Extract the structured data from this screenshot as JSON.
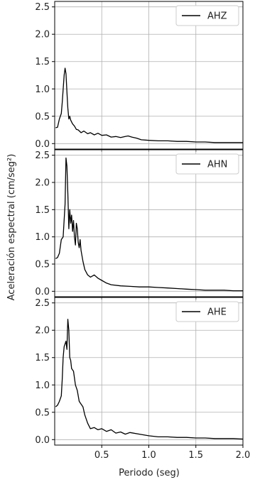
{
  "figure": {
    "ylabel": "Aceleración espectral (cm/seg²)",
    "xlabel": "Periodo (seg)"
  },
  "colors": {
    "line": "#000000",
    "grid": "#b0b0b0",
    "frame": "#000000"
  },
  "chart_data": [
    {
      "type": "line",
      "legend_position": "top-right",
      "grid": true,
      "xlim": [
        0.0,
        2.0
      ],
      "ylim": [
        -0.1,
        2.6
      ],
      "x_ticks": [
        0.5,
        1.0,
        1.5,
        2.0
      ],
      "x_tick_labels_visible": false,
      "y_ticks": [
        0.0,
        0.5,
        1.0,
        1.5,
        2.0,
        2.5
      ],
      "series": [
        {
          "name": "AHZ",
          "x": [
            0.01,
            0.03,
            0.05,
            0.07,
            0.08,
            0.1,
            0.11,
            0.12,
            0.13,
            0.14,
            0.15,
            0.16,
            0.17,
            0.19,
            0.21,
            0.23,
            0.25,
            0.28,
            0.31,
            0.35,
            0.38,
            0.42,
            0.46,
            0.5,
            0.55,
            0.6,
            0.65,
            0.7,
            0.75,
            0.78,
            0.82,
            0.87,
            0.92,
            1.0,
            1.1,
            1.2,
            1.3,
            1.4,
            1.5,
            1.6,
            1.7,
            1.8,
            1.9,
            2.0
          ],
          "y": [
            0.29,
            0.3,
            0.45,
            0.55,
            0.75,
            1.25,
            1.38,
            1.28,
            0.95,
            0.65,
            0.45,
            0.5,
            0.43,
            0.36,
            0.32,
            0.26,
            0.25,
            0.2,
            0.23,
            0.18,
            0.2,
            0.16,
            0.19,
            0.15,
            0.16,
            0.12,
            0.13,
            0.11,
            0.13,
            0.14,
            0.12,
            0.1,
            0.07,
            0.06,
            0.05,
            0.05,
            0.04,
            0.04,
            0.03,
            0.03,
            0.02,
            0.02,
            0.02,
            0.02
          ]
        }
      ]
    },
    {
      "type": "line",
      "legend_position": "top-right",
      "grid": true,
      "xlim": [
        0.0,
        2.0
      ],
      "ylim": [
        -0.1,
        2.6
      ],
      "x_ticks": [
        0.5,
        1.0,
        1.5,
        2.0
      ],
      "x_tick_labels_visible": false,
      "y_ticks": [
        0.0,
        0.5,
        1.0,
        1.5,
        2.0,
        2.5
      ],
      "series": [
        {
          "name": "AHN",
          "x": [
            0.01,
            0.03,
            0.05,
            0.07,
            0.09,
            0.11,
            0.12,
            0.13,
            0.14,
            0.15,
            0.16,
            0.17,
            0.18,
            0.19,
            0.2,
            0.21,
            0.22,
            0.23,
            0.24,
            0.25,
            0.26,
            0.27,
            0.28,
            0.3,
            0.32,
            0.35,
            0.38,
            0.42,
            0.46,
            0.5,
            0.55,
            0.6,
            0.7,
            0.8,
            0.9,
            1.0,
            1.1,
            1.2,
            1.3,
            1.4,
            1.5,
            1.6,
            1.7,
            1.8,
            1.9,
            2.0
          ],
          "y": [
            0.6,
            0.62,
            0.7,
            0.95,
            1.0,
            1.6,
            2.45,
            2.3,
            1.8,
            1.15,
            1.5,
            1.25,
            1.4,
            1.1,
            1.3,
            1.0,
            0.85,
            1.25,
            1.15,
            0.9,
            0.8,
            0.95,
            0.75,
            0.55,
            0.4,
            0.3,
            0.26,
            0.3,
            0.24,
            0.2,
            0.15,
            0.12,
            0.1,
            0.09,
            0.08,
            0.08,
            0.07,
            0.06,
            0.05,
            0.04,
            0.03,
            0.02,
            0.02,
            0.02,
            0.01,
            0.01
          ]
        }
      ]
    },
    {
      "type": "line",
      "legend_position": "top-right",
      "grid": true,
      "xlim": [
        0.0,
        2.0
      ],
      "ylim": [
        -0.1,
        2.6
      ],
      "x_ticks": [
        0.5,
        1.0,
        1.5,
        2.0
      ],
      "x_tick_labels_visible": true,
      "y_ticks": [
        0.0,
        0.5,
        1.0,
        1.5,
        2.0,
        2.5
      ],
      "series": [
        {
          "name": "AHE",
          "x": [
            0.01,
            0.03,
            0.05,
            0.07,
            0.08,
            0.09,
            0.1,
            0.11,
            0.12,
            0.13,
            0.14,
            0.15,
            0.16,
            0.17,
            0.18,
            0.2,
            0.22,
            0.24,
            0.26,
            0.28,
            0.3,
            0.32,
            0.35,
            0.38,
            0.42,
            0.46,
            0.5,
            0.55,
            0.6,
            0.65,
            0.7,
            0.75,
            0.8,
            0.9,
            1.0,
            1.1,
            1.2,
            1.3,
            1.4,
            1.5,
            1.6,
            1.7,
            1.8,
            1.9,
            2.0
          ],
          "y": [
            0.6,
            0.63,
            0.7,
            0.8,
            1.1,
            1.5,
            1.7,
            1.75,
            1.8,
            1.65,
            2.2,
            2.0,
            1.5,
            1.45,
            1.3,
            1.25,
            1.0,
            0.9,
            0.7,
            0.65,
            0.6,
            0.45,
            0.3,
            0.2,
            0.22,
            0.18,
            0.2,
            0.15,
            0.18,
            0.12,
            0.14,
            0.1,
            0.13,
            0.1,
            0.07,
            0.05,
            0.05,
            0.04,
            0.04,
            0.03,
            0.03,
            0.02,
            0.02,
            0.02,
            0.01
          ]
        }
      ]
    }
  ]
}
